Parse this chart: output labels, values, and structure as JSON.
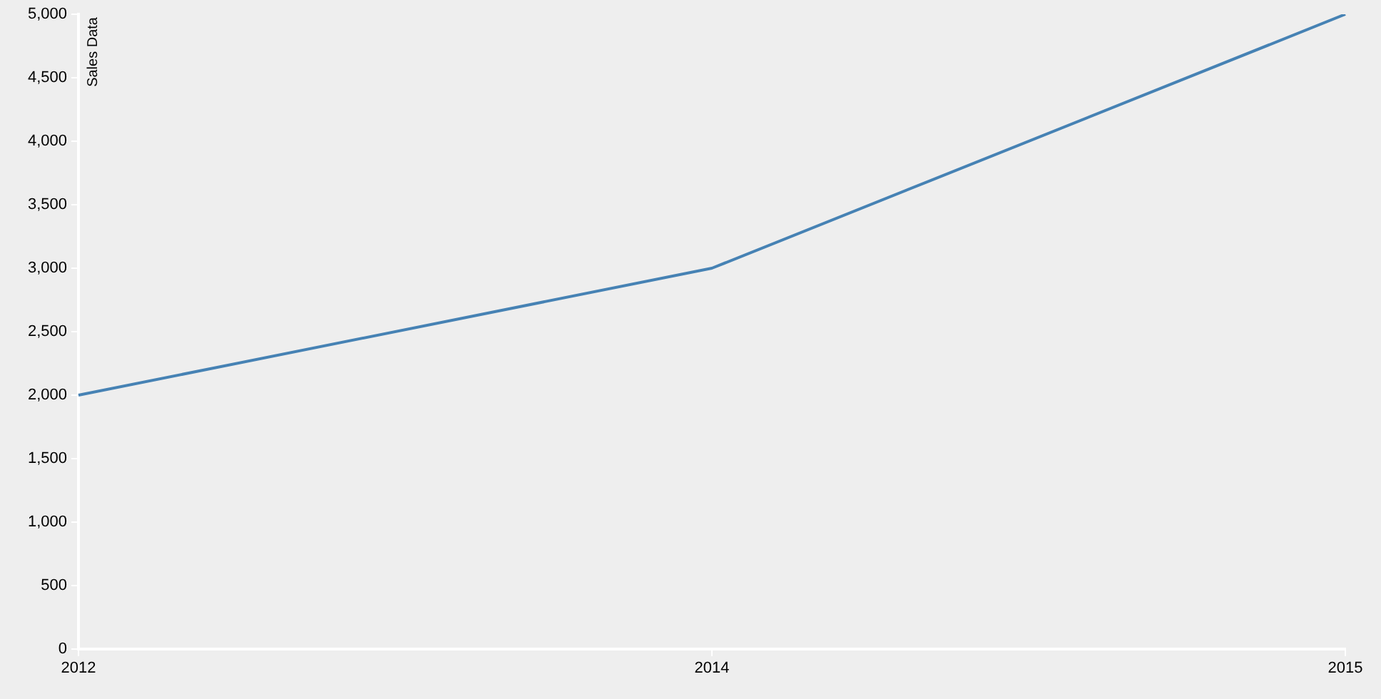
{
  "chart_data": {
    "type": "line",
    "ylabel": "Sales Data",
    "categories": [
      "2012",
      "2014",
      "2015"
    ],
    "series": [
      {
        "color": "#4682b4",
        "values": [
          2000,
          3000,
          5000
        ]
      }
    ],
    "ylim": [
      0,
      5000
    ],
    "yticks": [
      0,
      500,
      {
        "value": 1000,
        "label": "1,000"
      },
      {
        "value": 1500,
        "label": "1,500"
      },
      {
        "value": 2000,
        "label": "2,000"
      },
      {
        "value": 2500,
        "label": "2,500"
      },
      {
        "value": 3000,
        "label": "3,000"
      },
      {
        "value": 3500,
        "label": "3,500"
      },
      {
        "value": 4000,
        "label": "4,000"
      },
      {
        "value": 4500,
        "label": "4,500"
      },
      {
        "value": 5000,
        "label": "5,000"
      }
    ],
    "legend": false,
    "marker": "none"
  }
}
